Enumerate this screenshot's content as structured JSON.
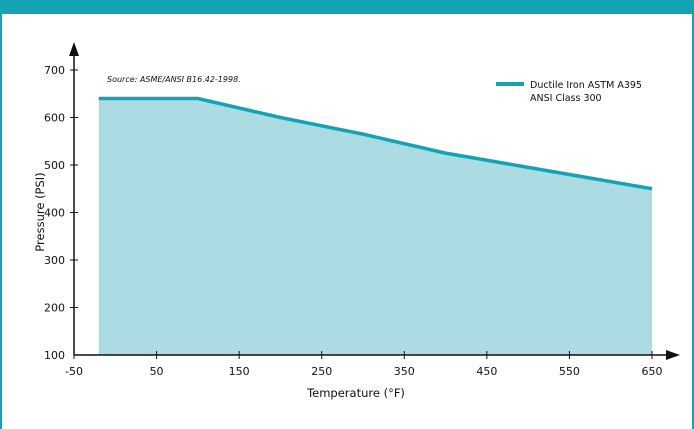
{
  "colors": {
    "frame": "#13a3b4",
    "area_fill": "#abdce3",
    "line": "#13a3b4",
    "axis": "#111111"
  },
  "chart_data": {
    "type": "area",
    "xlabel": "Temperature (°F)",
    "ylabel": "Pressure (PSI)",
    "source_note": "Source: ASME/ANSI B16.42-1998.",
    "x_tick_labels": [
      "-50",
      "50",
      "150",
      "250",
      "350",
      "450",
      "550",
      "650"
    ],
    "y_tick_labels": [
      "100",
      "200",
      "300",
      "400",
      "500",
      "600",
      "700"
    ],
    "xlim": [
      -50,
      650
    ],
    "ylim": [
      100,
      700
    ],
    "legend": {
      "position": "top-right",
      "line1": "Ductile Iron ASTM A395",
      "line2": "ANSI Class 300"
    },
    "series": [
      {
        "name": "Ductile Iron ASTM A395 ANSI Class 300",
        "x": [
          -20,
          100,
          200,
          300,
          400,
          500,
          600,
          650
        ],
        "y": [
          640,
          640,
          600,
          565,
          525,
          495,
          465,
          450
        ]
      }
    ]
  }
}
